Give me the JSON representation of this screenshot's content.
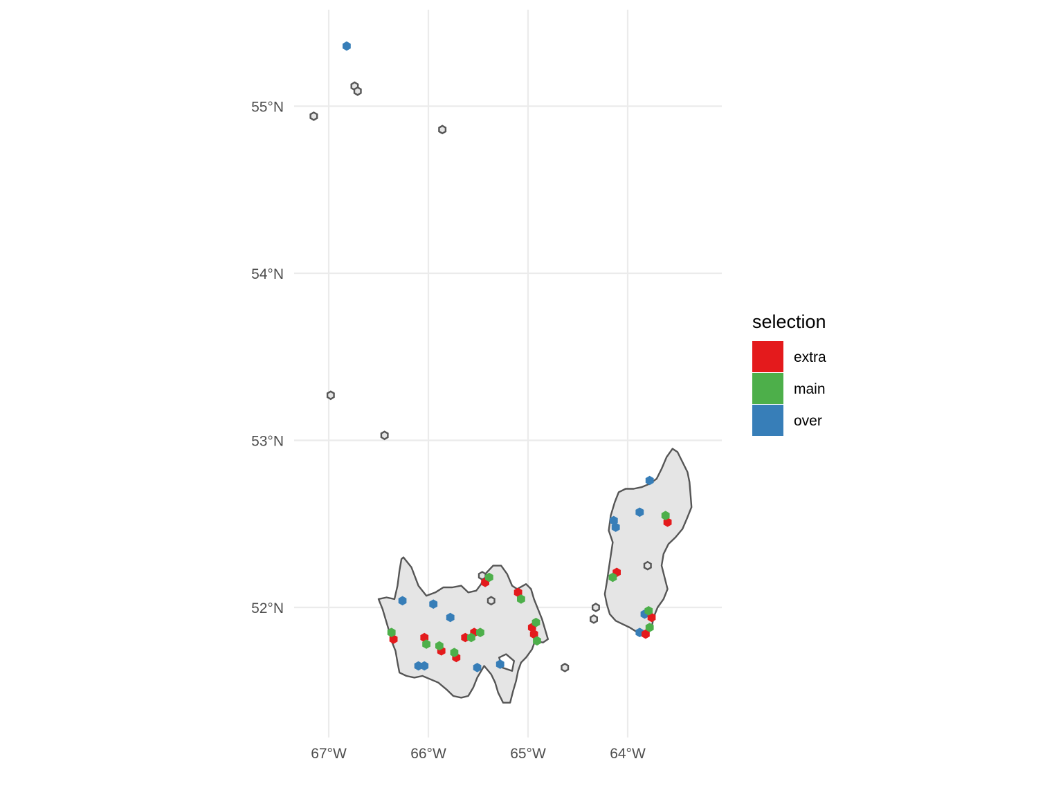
{
  "map": {
    "x_axis": {
      "range_lon": [
        -67.2,
        -63.1
      ],
      "ticks": [
        {
          "lon": -67,
          "label": "67°W"
        },
        {
          "lon": -66,
          "label": "66°W"
        },
        {
          "lon": -65,
          "label": "65°W"
        },
        {
          "lon": -64,
          "label": "64°W"
        }
      ]
    },
    "y_axis": {
      "range_lat": [
        51.28,
        55.6
      ],
      "ticks": [
        {
          "lat": 55,
          "label": "55°N"
        },
        {
          "lat": 54,
          "label": "54°N"
        },
        {
          "lat": 53,
          "label": "53°N"
        },
        {
          "lat": 52,
          "label": "52°N"
        }
      ]
    },
    "grid": true,
    "region_fill": "#e5e5e5",
    "outline_color": "#555555",
    "regions": [
      {
        "name": "west-region",
        "polygon": [
          [
            -66.25,
            52.3
          ],
          [
            -66.17,
            52.24
          ],
          [
            -66.1,
            52.13
          ],
          [
            -66.02,
            52.07
          ],
          [
            -65.93,
            52.09
          ],
          [
            -65.85,
            52.12
          ],
          [
            -65.76,
            52.12
          ],
          [
            -65.67,
            52.13
          ],
          [
            -65.6,
            52.09
          ],
          [
            -65.52,
            52.1
          ],
          [
            -65.47,
            52.14
          ],
          [
            -65.43,
            52.2
          ],
          [
            -65.35,
            52.25
          ],
          [
            -65.27,
            52.25
          ],
          [
            -65.21,
            52.2
          ],
          [
            -65.16,
            52.13
          ],
          [
            -65.11,
            52.11
          ],
          [
            -65.02,
            52.14
          ],
          [
            -64.97,
            52.11
          ],
          [
            -64.94,
            52.05
          ],
          [
            -64.9,
            51.99
          ],
          [
            -64.86,
            51.93
          ],
          [
            -64.83,
            51.87
          ],
          [
            -64.8,
            51.81
          ],
          [
            -64.85,
            51.79
          ],
          [
            -64.93,
            51.8
          ],
          [
            -64.96,
            51.75
          ],
          [
            -65.02,
            51.7
          ],
          [
            -65.07,
            51.67
          ],
          [
            -65.1,
            51.62
          ],
          [
            -65.12,
            51.56
          ],
          [
            -65.15,
            51.5
          ],
          [
            -65.18,
            51.43
          ],
          [
            -65.25,
            51.43
          ],
          [
            -65.3,
            51.49
          ],
          [
            -65.33,
            51.55
          ],
          [
            -65.37,
            51.6
          ],
          [
            -65.44,
            51.65
          ],
          [
            -65.51,
            51.58
          ],
          [
            -65.55,
            51.52
          ],
          [
            -65.6,
            51.47
          ],
          [
            -65.67,
            51.46
          ],
          [
            -65.75,
            51.47
          ],
          [
            -65.82,
            51.51
          ],
          [
            -65.9,
            51.55
          ],
          [
            -65.98,
            51.57
          ],
          [
            -66.06,
            51.59
          ],
          [
            -66.14,
            51.58
          ],
          [
            -66.22,
            51.59
          ],
          [
            -66.29,
            51.61
          ],
          [
            -66.31,
            51.67
          ],
          [
            -66.33,
            51.74
          ],
          [
            -66.37,
            51.8
          ],
          [
            -66.4,
            51.87
          ],
          [
            -66.43,
            51.93
          ],
          [
            -66.46,
            51.99
          ],
          [
            -66.5,
            52.05
          ],
          [
            -66.42,
            52.06
          ],
          [
            -66.34,
            52.05
          ],
          [
            -66.31,
            52.13
          ],
          [
            -66.29,
            52.22
          ],
          [
            -66.27,
            52.29
          ]
        ],
        "holes": [
          [
            [
              -65.26,
              51.64
            ],
            [
              -65.16,
              51.62
            ],
            [
              -65.14,
              51.68
            ],
            [
              -65.22,
              51.72
            ],
            [
              -65.29,
              51.7
            ]
          ]
        ]
      },
      {
        "name": "east-region",
        "polygon": [
          [
            -63.55,
            52.95
          ],
          [
            -63.5,
            52.93
          ],
          [
            -63.45,
            52.87
          ],
          [
            -63.4,
            52.81
          ],
          [
            -63.38,
            52.75
          ],
          [
            -63.37,
            52.68
          ],
          [
            -63.36,
            52.6
          ],
          [
            -63.4,
            52.54
          ],
          [
            -63.45,
            52.47
          ],
          [
            -63.52,
            52.42
          ],
          [
            -63.59,
            52.38
          ],
          [
            -63.64,
            52.32
          ],
          [
            -63.66,
            52.25
          ],
          [
            -63.63,
            52.18
          ],
          [
            -63.6,
            52.11
          ],
          [
            -63.64,
            52.05
          ],
          [
            -63.7,
            52.0
          ],
          [
            -63.74,
            51.94
          ],
          [
            -63.76,
            51.88
          ],
          [
            -63.81,
            51.85
          ],
          [
            -63.9,
            51.85
          ],
          [
            -63.98,
            51.88
          ],
          [
            -64.05,
            51.9
          ],
          [
            -64.12,
            51.92
          ],
          [
            -64.18,
            51.96
          ],
          [
            -64.21,
            52.02
          ],
          [
            -64.23,
            52.08
          ],
          [
            -64.21,
            52.15
          ],
          [
            -64.19,
            52.23
          ],
          [
            -64.17,
            52.31
          ],
          [
            -64.15,
            52.39
          ],
          [
            -64.19,
            52.46
          ],
          [
            -64.17,
            52.55
          ],
          [
            -64.13,
            52.63
          ],
          [
            -64.09,
            52.69
          ],
          [
            -64.02,
            52.71
          ],
          [
            -63.94,
            52.71
          ],
          [
            -63.86,
            52.72
          ],
          [
            -63.78,
            52.74
          ],
          [
            -63.71,
            52.77
          ],
          [
            -63.66,
            52.83
          ],
          [
            -63.61,
            52.9
          ]
        ],
        "holes": []
      }
    ],
    "empty_hexes": [
      {
        "lon": -67.15,
        "lat": 54.94
      },
      {
        "lon": -66.74,
        "lat": 55.12
      },
      {
        "lon": -66.71,
        "lat": 55.09
      },
      {
        "lon": -65.86,
        "lat": 54.86
      },
      {
        "lon": -66.98,
        "lat": 53.27
      },
      {
        "lon": -66.44,
        "lat": 53.03
      },
      {
        "lon": -65.37,
        "lat": 52.04
      },
      {
        "lon": -65.46,
        "lat": 52.19
      },
      {
        "lon": -64.63,
        "lat": 51.64
      },
      {
        "lon": -64.32,
        "lat": 52.0
      },
      {
        "lon": -64.34,
        "lat": 51.93
      },
      {
        "lon": -63.8,
        "lat": 52.25
      }
    ],
    "selection_points": [
      {
        "lon": -66.82,
        "lat": 55.36,
        "selection": "over"
      },
      {
        "lon": -66.26,
        "lat": 52.04,
        "selection": "over"
      },
      {
        "lon": -65.95,
        "lat": 52.02,
        "selection": "over"
      },
      {
        "lon": -65.78,
        "lat": 51.94,
        "selection": "over"
      },
      {
        "lon": -66.1,
        "lat": 51.65,
        "selection": "over"
      },
      {
        "lon": -66.04,
        "lat": 51.65,
        "selection": "over"
      },
      {
        "lon": -65.51,
        "lat": 51.64,
        "selection": "over"
      },
      {
        "lon": -65.28,
        "lat": 51.66,
        "selection": "over"
      },
      {
        "lon": -63.78,
        "lat": 52.76,
        "selection": "over"
      },
      {
        "lon": -63.88,
        "lat": 52.57,
        "selection": "over"
      },
      {
        "lon": -64.14,
        "lat": 52.52,
        "selection": "over"
      },
      {
        "lon": -64.12,
        "lat": 52.48,
        "selection": "over"
      },
      {
        "lon": -63.83,
        "lat": 51.96,
        "selection": "over"
      },
      {
        "lon": -63.88,
        "lat": 51.85,
        "selection": "over"
      },
      {
        "lon": -66.35,
        "lat": 51.81,
        "selection": "extra"
      },
      {
        "lon": -66.04,
        "lat": 51.82,
        "selection": "extra"
      },
      {
        "lon": -65.87,
        "lat": 51.74,
        "selection": "extra"
      },
      {
        "lon": -65.72,
        "lat": 51.7,
        "selection": "extra"
      },
      {
        "lon": -65.63,
        "lat": 51.82,
        "selection": "extra"
      },
      {
        "lon": -65.54,
        "lat": 51.85,
        "selection": "extra"
      },
      {
        "lon": -65.43,
        "lat": 52.15,
        "selection": "extra"
      },
      {
        "lon": -65.1,
        "lat": 52.09,
        "selection": "extra"
      },
      {
        "lon": -64.96,
        "lat": 51.88,
        "selection": "extra"
      },
      {
        "lon": -64.94,
        "lat": 51.84,
        "selection": "extra"
      },
      {
        "lon": -64.11,
        "lat": 52.21,
        "selection": "extra"
      },
      {
        "lon": -63.6,
        "lat": 52.51,
        "selection": "extra"
      },
      {
        "lon": -63.76,
        "lat": 51.94,
        "selection": "extra"
      },
      {
        "lon": -63.82,
        "lat": 51.84,
        "selection": "extra"
      },
      {
        "lon": -66.37,
        "lat": 51.85,
        "selection": "main"
      },
      {
        "lon": -66.02,
        "lat": 51.78,
        "selection": "main"
      },
      {
        "lon": -65.89,
        "lat": 51.77,
        "selection": "main"
      },
      {
        "lon": -65.74,
        "lat": 51.73,
        "selection": "main"
      },
      {
        "lon": -65.57,
        "lat": 51.82,
        "selection": "main"
      },
      {
        "lon": -65.48,
        "lat": 51.85,
        "selection": "main"
      },
      {
        "lon": -65.39,
        "lat": 52.18,
        "selection": "main"
      },
      {
        "lon": -65.07,
        "lat": 52.05,
        "selection": "main"
      },
      {
        "lon": -64.92,
        "lat": 51.91,
        "selection": "main"
      },
      {
        "lon": -64.91,
        "lat": 51.8,
        "selection": "main"
      },
      {
        "lon": -64.15,
        "lat": 52.18,
        "selection": "main"
      },
      {
        "lon": -63.62,
        "lat": 52.55,
        "selection": "main"
      },
      {
        "lon": -63.79,
        "lat": 51.98,
        "selection": "main"
      },
      {
        "lon": -63.78,
        "lat": 51.88,
        "selection": "main"
      }
    ]
  },
  "legend": {
    "title": "selection",
    "items": [
      {
        "key": "extra",
        "label": "extra",
        "color": "#e41a1c"
      },
      {
        "key": "main",
        "label": "main",
        "color": "#4daf4a"
      },
      {
        "key": "over",
        "label": "over",
        "color": "#377eb8"
      }
    ]
  }
}
